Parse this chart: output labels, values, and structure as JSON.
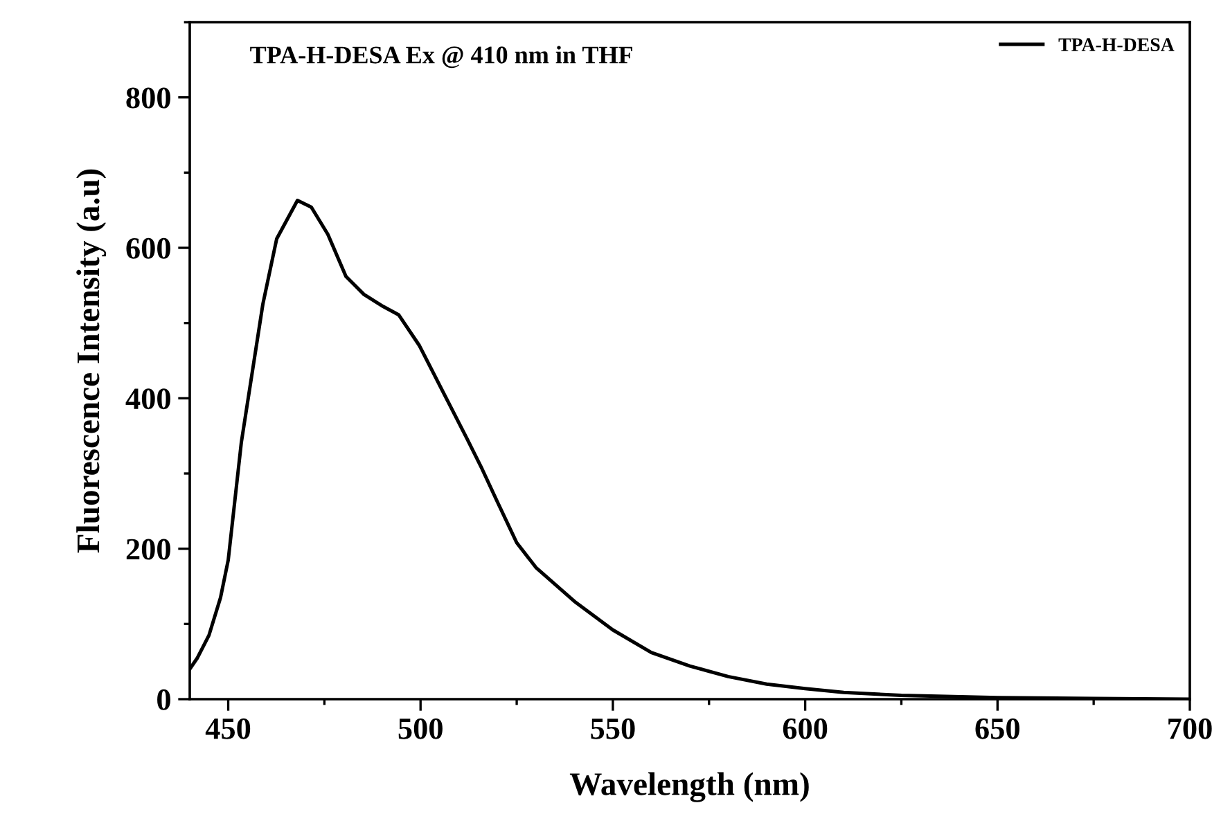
{
  "chart_data": {
    "type": "line",
    "title": "TPA-H-DESA Ex @ 410 nm in THF",
    "xlabel": "Wavelength (nm)",
    "ylabel": "Fluorescence Intensity (a.u)",
    "x": [
      440,
      442,
      445,
      448,
      450,
      453.4,
      459.0,
      462.6,
      468.0,
      471.6,
      475.9,
      480.6,
      485.3,
      490.3,
      494.3,
      499.7,
      505.8,
      512.0,
      516,
      520,
      525,
      530,
      540,
      550,
      560,
      570,
      580,
      590,
      600,
      610,
      625,
      650,
      675,
      700
    ],
    "series": [
      {
        "name": "TPA-H-DESA",
        "color": "#000000",
        "values": [
          40,
          55,
          85,
          135,
          185,
          341,
          525,
          612,
          663,
          654,
          618,
          562,
          538,
          522,
          511,
          470,
          409,
          347,
          306,
          262,
          208,
          175,
          130,
          92,
          62,
          44,
          30,
          20,
          14,
          9,
          5,
          2,
          1,
          0
        ]
      }
    ],
    "xlim": [
      440,
      700
    ],
    "ylim": [
      0,
      900
    ],
    "xticks": [
      450,
      500,
      550,
      600,
      650,
      700
    ],
    "yticks": [
      0,
      200,
      400,
      600,
      800
    ],
    "grid": false,
    "legend": "top right",
    "marker": "none",
    "line_style": "solid"
  }
}
